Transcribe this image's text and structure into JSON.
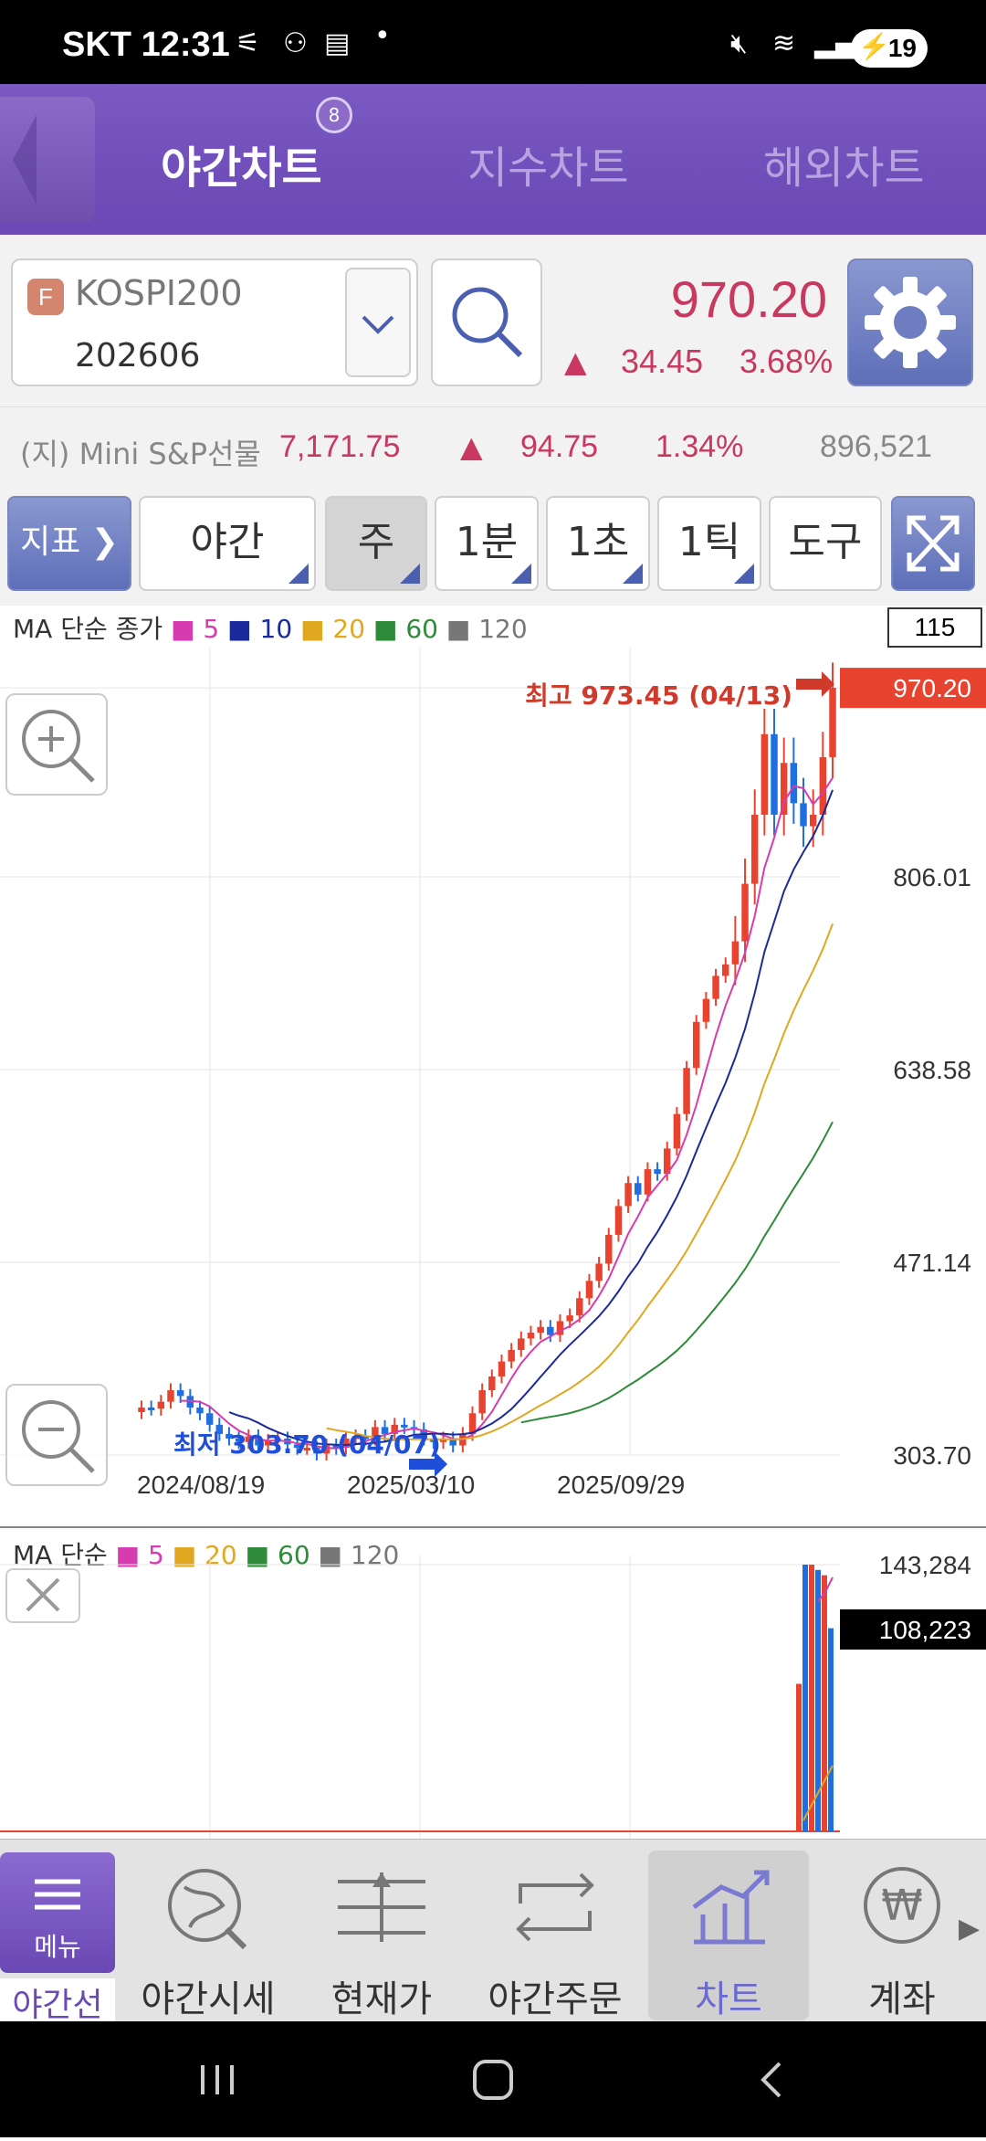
{
  "status": {
    "carrier": "SKT",
    "time": "12:31",
    "battery": "19"
  },
  "header": {
    "badge": "8",
    "tabs": [
      "야간차트",
      "지수차트",
      "해외차트"
    ]
  },
  "instrument": {
    "code_icon": "F",
    "name": "KOSPI200",
    "expiry": "202606",
    "price": "970.20",
    "change": "34.45",
    "change_pct": "3.68%"
  },
  "sub_quote": {
    "label": "(지) Mini S&P선물",
    "price": "7,171.75",
    "change": "94.75",
    "change_pct": "1.34%",
    "volume": "896,521"
  },
  "toolbar": {
    "indicator": "지표",
    "session": "야간",
    "period": "주",
    "min": "1분",
    "sec": "1초",
    "tick": "1틱",
    "tools": "도구"
  },
  "colors": {
    "up": "#e8432f",
    "down": "#1f6fe0",
    "ma5": "#d63cb0",
    "ma10": "#1a2a9a",
    "ma20": "#e0a820",
    "ma60": "#2e8b3a",
    "ma120": "#777777",
    "accent": "#6a48b5"
  },
  "price_chart": {
    "legend_title": "MA 단순 종가",
    "legend": [
      {
        "name": "5",
        "color": "#d63cb0"
      },
      {
        "name": "10",
        "color": "#1a2a9a"
      },
      {
        "name": "20",
        "color": "#e0a820"
      },
      {
        "name": "60",
        "color": "#2e8b3a"
      },
      {
        "name": "120",
        "color": "#777777"
      }
    ],
    "count_box": "115",
    "high_label": "최고 973.45 (04/13)",
    "low_label": "최저 303.70 (04/07)",
    "last_price_tag": "970.20"
  },
  "volume_chart": {
    "legend_title": "MA 단순",
    "legend": [
      {
        "name": "5",
        "color": "#d63cb0"
      },
      {
        "name": "20",
        "color": "#e0a820"
      },
      {
        "name": "60",
        "color": "#2e8b3a"
      },
      {
        "name": "120",
        "color": "#777777"
      }
    ],
    "last_volume_tag": "108,223"
  },
  "chart_data": {
    "type": "candlestick",
    "y_ticks": [
      "970.20",
      "806.01",
      "638.58",
      "471.14",
      "303.70"
    ],
    "ylim": [
      303.7,
      973.45
    ],
    "x_ticks": [
      "2024/08/19",
      "2025/03/10",
      "2025/09/29"
    ],
    "closes": [
      345,
      344,
      350,
      360,
      355,
      345,
      340,
      330,
      322,
      318,
      315,
      320,
      312,
      316,
      318,
      313,
      310,
      310,
      305,
      312,
      310,
      318,
      320,
      318,
      328,
      322,
      330,
      328,
      326,
      318,
      315,
      318,
      312,
      322,
      340,
      360,
      372,
      385,
      395,
      405,
      410,
      415,
      408,
      420,
      425,
      440,
      455,
      470,
      495,
      520,
      540,
      530,
      552,
      548,
      570,
      600,
      640,
      680,
      700,
      720,
      730,
      750,
      800,
      860,
      930,
      860,
      905,
      870,
      850,
      860,
      910,
      970.2
    ],
    "volume_y_ticks": [
      "143,284",
      "108,223"
    ]
  },
  "tabbar": {
    "menu": "메뉴",
    "menu_caption": "야간선옵",
    "items": [
      "야간시세",
      "현재가",
      "야간주문",
      "차트",
      "계좌"
    ]
  }
}
